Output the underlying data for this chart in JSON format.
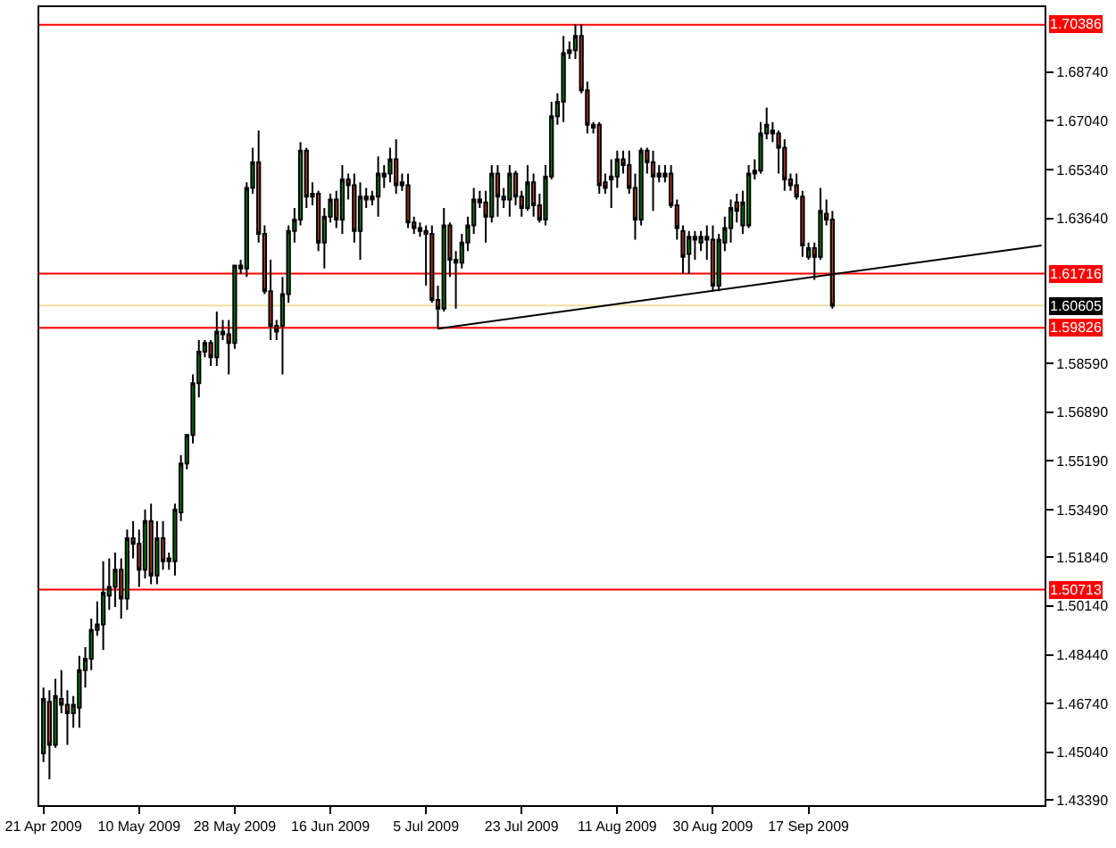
{
  "chart_data": {
    "type": "candlestick",
    "categories": [
      "21 Apr 2009",
      null,
      null,
      null,
      null,
      null,
      null,
      null,
      null,
      null,
      null,
      null,
      null,
      null,
      null,
      null,
      "10 May 2009",
      null,
      null,
      null,
      null,
      null,
      null,
      null,
      null,
      null,
      null,
      null,
      null,
      null,
      null,
      null,
      "28 May 2009",
      null,
      null,
      null,
      null,
      null,
      null,
      null,
      null,
      null,
      null,
      null,
      null,
      null,
      null,
      null,
      "16 Jun 2009",
      null,
      null,
      null,
      null,
      null,
      null,
      null,
      null,
      null,
      null,
      null,
      null,
      null,
      null,
      null,
      "5 Jul 2009",
      null,
      null,
      null,
      null,
      null,
      null,
      null,
      null,
      null,
      null,
      null,
      null,
      null,
      null,
      null,
      "23 Jul 2009",
      null,
      null,
      null,
      null,
      null,
      null,
      null,
      null,
      null,
      null,
      null,
      null,
      null,
      null,
      null,
      "11 Aug 2009",
      null,
      null,
      null,
      null,
      null,
      null,
      null,
      null,
      null,
      null,
      null,
      null,
      null,
      null,
      null,
      "30 Aug 2009",
      null,
      null,
      null,
      null,
      null,
      null,
      null,
      null,
      null,
      null,
      null,
      null,
      null,
      null,
      null,
      "17 Sep 2009",
      null,
      null,
      null,
      null,
      null,
      null,
      null,
      null,
      null,
      null,
      null,
      null,
      null,
      null,
      null,
      null,
      null,
      null,
      null,
      null,
      null,
      null,
      null,
      null,
      null,
      null,
      null,
      null,
      null,
      null,
      null,
      null,
      null,
      null,
      null,
      null,
      null,
      null,
      null
    ],
    "ohlc": [
      [
        1.45,
        1.473,
        1.447,
        1.469
      ],
      [
        1.468,
        1.472,
        1.441,
        1.453
      ],
      [
        1.453,
        1.476,
        1.452,
        1.47
      ],
      [
        1.469,
        1.479,
        1.464,
        1.467
      ],
      [
        1.467,
        1.472,
        1.453,
        1.464
      ],
      [
        1.464,
        1.47,
        1.459,
        1.467
      ],
      [
        1.466,
        1.484,
        1.459,
        1.479
      ],
      [
        1.479,
        1.487,
        1.473,
        1.483
      ],
      [
        1.483,
        1.497,
        1.479,
        1.493
      ],
      [
        1.493,
        1.503,
        1.491,
        1.495
      ],
      [
        1.495,
        1.517,
        1.486,
        1.506
      ],
      [
        1.505,
        1.518,
        1.5,
        1.508
      ],
      [
        1.508,
        1.52,
        1.501,
        1.514
      ],
      [
        1.514,
        1.518,
        1.497,
        1.504
      ],
      [
        1.504,
        1.528,
        1.5,
        1.525
      ],
      [
        1.525,
        1.531,
        1.518,
        1.523
      ],
      [
        1.523,
        1.528,
        1.508,
        1.514
      ],
      [
        1.514,
        1.535,
        1.511,
        1.531
      ],
      [
        1.531,
        1.537,
        1.509,
        1.512
      ],
      [
        1.512,
        1.531,
        1.509,
        1.525
      ],
      [
        1.525,
        1.531,
        1.514,
        1.517
      ],
      [
        1.518,
        1.52,
        1.514,
        1.517
      ],
      [
        1.517,
        1.537,
        1.512,
        1.535
      ],
      [
        1.534,
        1.554,
        1.531,
        1.551
      ],
      [
        1.551,
        1.561,
        1.549,
        1.561
      ],
      [
        1.561,
        1.582,
        1.558,
        1.579
      ],
      [
        1.579,
        1.594,
        1.574,
        1.59
      ],
      [
        1.59,
        1.594,
        1.588,
        1.593
      ],
      [
        1.593,
        1.594,
        1.585,
        1.588
      ],
      [
        1.588,
        1.604,
        1.585,
        1.597
      ],
      [
        1.596,
        1.601,
        1.594,
        1.597
      ],
      [
        1.596,
        1.601,
        1.582,
        1.593
      ],
      [
        1.593,
        1.62,
        1.591,
        1.62
      ],
      [
        1.619,
        1.622,
        1.617,
        1.62
      ],
      [
        1.619,
        1.649,
        1.616,
        1.647
      ],
      [
        1.647,
        1.661,
        1.645,
        1.656
      ],
      [
        1.656,
        1.667,
        1.628,
        1.631
      ],
      [
        1.631,
        1.634,
        1.61,
        1.611
      ],
      [
        1.611,
        1.622,
        1.594,
        1.599
      ],
      [
        1.599,
        1.601,
        1.594,
        1.597
      ],
      [
        1.599,
        1.616,
        1.582,
        1.61
      ],
      [
        1.61,
        1.634,
        1.607,
        1.632
      ],
      [
        1.632,
        1.64,
        1.628,
        1.636
      ],
      [
        1.636,
        1.663,
        1.634,
        1.66
      ],
      [
        1.66,
        1.661,
        1.64,
        1.644
      ],
      [
        1.645,
        1.649,
        1.641,
        1.644
      ],
      [
        1.645,
        1.646,
        1.625,
        1.628
      ],
      [
        1.628,
        1.64,
        1.619,
        1.637
      ],
      [
        1.637,
        1.645,
        1.635,
        1.643
      ],
      [
        1.643,
        1.646,
        1.633,
        1.636
      ],
      [
        1.636,
        1.655,
        1.631,
        1.65
      ],
      [
        1.65,
        1.652,
        1.643,
        1.648
      ],
      [
        1.648,
        1.652,
        1.628,
        1.632
      ],
      [
        1.632,
        1.649,
        1.622,
        1.644
      ],
      [
        1.644,
        1.647,
        1.64,
        1.643
      ],
      [
        1.643,
        1.646,
        1.641,
        1.644
      ],
      [
        1.644,
        1.658,
        1.637,
        1.652
      ],
      [
        1.652,
        1.655,
        1.647,
        1.651
      ],
      [
        1.652,
        1.661,
        1.649,
        1.657
      ],
      [
        1.657,
        1.664,
        1.645,
        1.648
      ],
      [
        1.649,
        1.652,
        1.646,
        1.648
      ],
      [
        1.648,
        1.652,
        1.633,
        1.635
      ],
      [
        1.635,
        1.637,
        1.631,
        1.633
      ],
      [
        1.633,
        1.635,
        1.63,
        1.632
      ],
      [
        1.632,
        1.634,
        1.613,
        1.631
      ],
      [
        1.631,
        1.634,
        1.607,
        1.608
      ],
      [
        1.608,
        1.613,
        1.598,
        1.605
      ],
      [
        1.605,
        1.64,
        1.604,
        1.634
      ],
      [
        1.634,
        1.635,
        1.616,
        1.622
      ],
      [
        1.622,
        1.625,
        1.605,
        1.621
      ],
      [
        1.621,
        1.631,
        1.619,
        1.628
      ],
      [
        1.628,
        1.637,
        1.625,
        1.634
      ],
      [
        1.634,
        1.647,
        1.631,
        1.643
      ],
      [
        1.643,
        1.646,
        1.64,
        1.642
      ],
      [
        1.642,
        1.646,
        1.628,
        1.637
      ],
      [
        1.637,
        1.655,
        1.635,
        1.652
      ],
      [
        1.652,
        1.655,
        1.637,
        1.644
      ],
      [
        1.644,
        1.647,
        1.64,
        1.643
      ],
      [
        1.643,
        1.655,
        1.637,
        1.652
      ],
      [
        1.652,
        1.653,
        1.641,
        1.644
      ],
      [
        1.644,
        1.646,
        1.637,
        1.64
      ],
      [
        1.64,
        1.655,
        1.639,
        1.649
      ],
      [
        1.649,
        1.652,
        1.637,
        1.641
      ],
      [
        1.641,
        1.645,
        1.635,
        1.636
      ],
      [
        1.636,
        1.655,
        1.634,
        1.651
      ],
      [
        1.651,
        1.677,
        1.65,
        1.672
      ],
      [
        1.672,
        1.68,
        1.669,
        1.677
      ],
      [
        1.677,
        1.7,
        1.67,
        1.694
      ],
      [
        1.694,
        1.698,
        1.692,
        1.695
      ],
      [
        1.695,
        1.704,
        1.692,
        1.7
      ],
      [
        1.7,
        1.704,
        1.68,
        1.681
      ],
      [
        1.681,
        1.684,
        1.666,
        1.669
      ],
      [
        1.669,
        1.67,
        1.666,
        1.668
      ],
      [
        1.669,
        1.67,
        1.645,
        1.648
      ],
      [
        1.649,
        1.652,
        1.645,
        1.647
      ],
      [
        1.65,
        1.657,
        1.64,
        1.651
      ],
      [
        1.651,
        1.66,
        1.647,
        1.657
      ],
      [
        1.657,
        1.66,
        1.652,
        1.655
      ],
      [
        1.655,
        1.66,
        1.645,
        1.647
      ],
      [
        1.647,
        1.652,
        1.629,
        1.636
      ],
      [
        1.636,
        1.661,
        1.634,
        1.66
      ],
      [
        1.66,
        1.661,
        1.652,
        1.656
      ],
      [
        1.656,
        1.66,
        1.639,
        1.651
      ],
      [
        1.651,
        1.655,
        1.649,
        1.652
      ],
      [
        1.652,
        1.655,
        1.649,
        1.651
      ],
      [
        1.652,
        1.655,
        1.64,
        1.641
      ],
      [
        1.641,
        1.643,
        1.629,
        1.633
      ],
      [
        1.632,
        1.634,
        1.617,
        1.623
      ],
      [
        1.624,
        1.632,
        1.617,
        1.63
      ],
      [
        1.63,
        1.632,
        1.622,
        1.629
      ],
      [
        1.628,
        1.632,
        1.625,
        1.63
      ],
      [
        1.63,
        1.634,
        1.622,
        1.629
      ],
      [
        1.629,
        1.634,
        1.611,
        1.613
      ],
      [
        1.613,
        1.631,
        1.611,
        1.629
      ],
      [
        1.628,
        1.637,
        1.625,
        1.633
      ],
      [
        1.633,
        1.643,
        1.628,
        1.64
      ],
      [
        1.642,
        1.645,
        1.635,
        1.639
      ],
      [
        1.634,
        1.646,
        1.631,
        1.642
      ],
      [
        1.634,
        1.655,
        1.633,
        1.652
      ],
      [
        1.652,
        1.657,
        1.65,
        1.653
      ],
      [
        1.653,
        1.67,
        1.652,
        1.666
      ],
      [
        1.666,
        1.675,
        1.664,
        1.669
      ],
      [
        1.667,
        1.67,
        1.663,
        1.666
      ],
      [
        1.666,
        1.667,
        1.652,
        1.661
      ],
      [
        1.661,
        1.664,
        1.646,
        1.65
      ],
      [
        1.65,
        1.652,
        1.646,
        1.648
      ],
      [
        1.648,
        1.652,
        1.643,
        1.644
      ],
      [
        1.644,
        1.646,
        1.623,
        1.627
      ],
      [
        1.623,
        1.628,
        1.622,
        1.626
      ],
      [
        1.626,
        1.628,
        1.615,
        1.623
      ],
      [
        1.623,
        1.647,
        1.622,
        1.639
      ],
      [
        1.638,
        1.643,
        1.634,
        1.636
      ],
      [
        1.636,
        1.639,
        1.605,
        1.606
      ],
      null,
      null,
      null,
      null,
      null,
      null,
      null,
      null,
      null,
      null,
      null,
      null,
      null,
      null,
      null,
      null,
      null,
      null,
      null,
      null,
      null,
      null,
      null,
      null,
      null,
      null,
      null,
      null,
      null,
      null,
      null,
      null,
      null,
      null,
      null
    ],
    "series": [
      {
        "type": "line",
        "color": "#000000",
        "values": [
          null,
          null,
          null,
          null,
          null,
          null,
          null,
          null,
          null,
          null,
          null,
          null,
          null,
          null,
          null,
          null,
          null,
          null,
          null,
          null,
          null,
          null,
          null,
          null,
          null,
          null,
          null,
          null,
          null,
          null,
          null,
          null,
          null,
          null,
          null,
          null,
          null,
          null,
          null,
          null,
          null,
          null,
          null,
          null,
          null,
          null,
          null,
          null,
          null,
          null,
          null,
          null,
          null,
          null,
          null,
          null,
          null,
          null,
          null,
          null,
          null,
          null,
          null,
          null,
          null,
          null,
          1.598,
          null,
          null,
          null,
          null,
          null,
          null,
          null,
          null,
          null,
          null,
          null,
          null,
          null,
          null,
          null,
          null,
          null,
          null,
          null,
          null,
          null,
          null,
          null,
          null,
          null,
          null,
          null,
          null,
          null,
          null,
          null,
          null,
          null,
          null,
          null,
          null,
          null,
          null,
          null,
          null,
          null,
          null,
          null,
          null,
          null,
          null,
          null,
          null,
          null,
          null,
          null,
          null,
          null,
          null,
          null,
          null,
          null,
          null,
          null,
          null,
          null,
          null,
          null,
          null,
          null,
          null,
          null,
          null,
          null,
          null,
          null,
          null,
          null,
          null,
          null,
          null,
          null,
          null,
          null,
          null,
          null,
          null,
          null,
          null,
          null,
          null,
          null,
          null,
          null,
          null,
          null,
          null,
          null,
          null,
          null,
          null,
          null,
          null,
          null,
          null,
          1.627
        ]
      }
    ],
    "ylim": [
      1.432,
      1.71
    ],
    "yticks": [
      {
        "value": 1.6874,
        "label": "1.68740"
      },
      {
        "value": 1.6704,
        "label": "1.67040"
      },
      {
        "value": 1.6534,
        "label": "1.65340"
      },
      {
        "value": 1.6364,
        "label": "1.63640"
      },
      {
        "value": 1.5859,
        "label": "1.58590"
      },
      {
        "value": 1.5689,
        "label": "1.56890"
      },
      {
        "value": 1.5519,
        "label": "1.55190"
      },
      {
        "value": 1.5349,
        "label": "1.53490"
      },
      {
        "value": 1.5184,
        "label": "1.51840"
      },
      {
        "value": 1.5014,
        "label": "1.50140"
      },
      {
        "value": 1.4844,
        "label": "1.48440"
      },
      {
        "value": 1.4674,
        "label": "1.46740"
      },
      {
        "value": 1.4504,
        "label": "1.45040"
      },
      {
        "value": 1.4339,
        "label": "1.43390"
      }
    ],
    "ref_lines": [
      {
        "axis": "y",
        "value": 1.70386,
        "label": "1.70386",
        "color": "#ff0000"
      },
      {
        "axis": "y",
        "value": 1.61716,
        "label": "1.61716",
        "color": "#ff0000"
      },
      {
        "axis": "y",
        "value": 1.60605,
        "label": "1.60605",
        "color": "#f0e0a0"
      },
      {
        "axis": "y",
        "value": 1.59826,
        "label": "1.59826",
        "color": "#ff0000"
      },
      {
        "axis": "y",
        "value": 1.50713,
        "label": "1.50713",
        "color": "#ff0000"
      }
    ],
    "grid": false
  }
}
